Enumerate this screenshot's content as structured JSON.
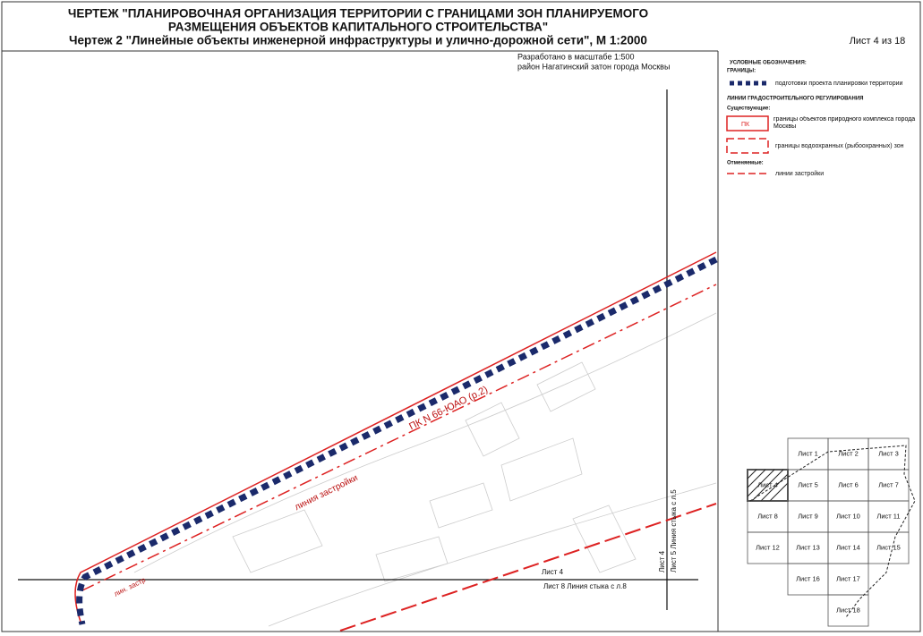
{
  "header": {
    "title_line1": "ЧЕРТЕЖ \"ПЛАНИРОВОЧНАЯ ОРГАНИЗАЦИЯ ТЕРРИТОРИИ С ГРАНИЦАМИ ЗОН ПЛАНИРУЕМОГО",
    "title_line2": "РАЗМЕЩЕНИЯ ОБЪЕКТОВ КАПИТАЛЬНОГО СТРОИТЕЛЬСТВА\"",
    "subtitle": "Чертеж 2 \"Линейные объекты инженерной инфраструктуры и улично-дорожной сети\", М 1:2000",
    "sheet": "Лист 4 из 18"
  },
  "map": {
    "scale_note": "Разработано в масштабе 1:500",
    "district_note": "район Нагатинский затон города Москвы",
    "pk_label": "ПК N 66-ЮАО (р.2)",
    "building_line": "линия застройки",
    "building_line_short": "лин. застр",
    "h_sheet_top": "Лист 4",
    "h_sheet_bottom": "Лист 8 Линия стыка с л.8",
    "v_sheet_left": "Лист 4",
    "v_sheet_right": "Лист 5 Линия стыка с л.5"
  },
  "legend": {
    "title": "УСЛОВНЫЕ ОБОЗНАЧЕНИЯ:",
    "boundaries": "ГРАНИЦЫ:",
    "project_boundary": "подготовки проекта планировки территории",
    "regulation_lines": "ЛИНИИ ГРАДОСТРОИТЕЛЬНОГО РЕГУЛИРОВАНИЯ",
    "existing": "Существующие:",
    "pk_sample": "ПК",
    "nature_complex": "границы объектов природного комплекса города Москвы",
    "water_zones": "границы водоохранных (рыбоохранных) зон",
    "cancelled": "Отменяемые:",
    "building_lines": "линии застройки"
  },
  "sheet_index": [
    "Лист 1",
    "Лист 2",
    "Лист 3",
    "Лист 4",
    "Лист 5",
    "Лист 6",
    "Лист 7",
    "Лист 8",
    "Лист 9",
    "Лист 10",
    "Лист 11",
    "Лист 12",
    "Лист 13",
    "Лист 14",
    "Лист 15",
    "Лист 16",
    "Лист 17",
    "Лист 18"
  ]
}
